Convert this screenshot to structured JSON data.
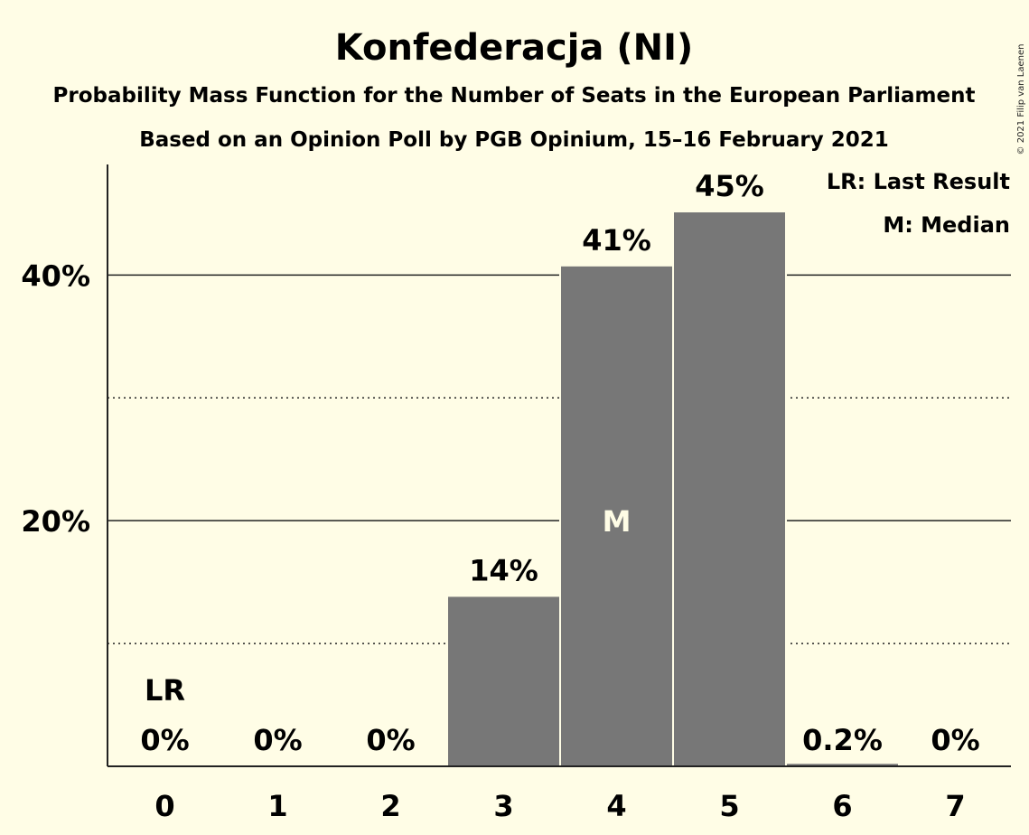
{
  "title": "Konfederacja (NI)",
  "subtitle1": "Probability Mass Function for the Number of Seats in the European Parliament",
  "subtitle2": "Based on an Opinion Poll by PGB Opinium, 15–16 February 2021",
  "copyright": "© 2021 Filip van Laenen",
  "legend": {
    "lr": "LR: Last Result",
    "m": "M: Median"
  },
  "colors": {
    "background": "#fffde6",
    "bar": "#777777",
    "text": "#222222"
  },
  "chart_data": {
    "type": "bar",
    "categories": [
      "0",
      "1",
      "2",
      "3",
      "4",
      "5",
      "6",
      "7"
    ],
    "values": [
      0,
      0,
      0,
      13.8,
      40.7,
      45.1,
      0.2,
      0
    ],
    "data_labels": [
      "0%",
      "0%",
      "0%",
      "14%",
      "41%",
      "45%",
      "0.2%",
      "0%"
    ],
    "ylim": [
      0,
      49
    ],
    "yticks": [
      {
        "value": 20,
        "label": "20%"
      },
      {
        "value": 40,
        "label": "40%"
      }
    ],
    "minor_gridlines": [
      10,
      30
    ],
    "last_result": {
      "category": "0",
      "label": "LR"
    },
    "median": {
      "category": "4",
      "label": "M"
    },
    "grid": true,
    "legend_position": "top-right"
  }
}
